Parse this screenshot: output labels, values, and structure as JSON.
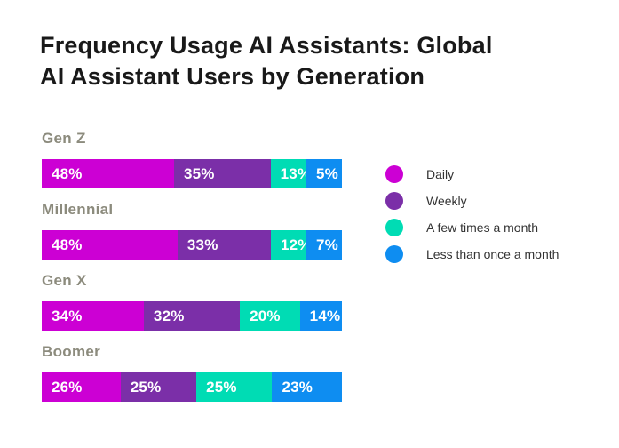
{
  "title": {
    "line1": "Frequency Usage AI Assistants: Global",
    "line2": "AI Assistant Users by Generation"
  },
  "chart_data": {
    "type": "bar",
    "orientation": "horizontal",
    "stacked": true,
    "unit": "%",
    "title": "Frequency Usage AI Assistants: Global AI Assistant Users by Generation",
    "categories": [
      "Gen Z",
      "Millennial",
      "Gen X",
      "Boomer"
    ],
    "series": [
      {
        "name": "Daily",
        "color": "#CC00D4",
        "values": [
          48,
          48,
          34,
          26
        ]
      },
      {
        "name": "Weekly",
        "color": "#7B2FA8",
        "values": [
          35,
          33,
          32,
          25
        ]
      },
      {
        "name": "A few times a month",
        "color": "#00DCB4",
        "values": [
          13,
          12,
          20,
          25
        ]
      },
      {
        "name": "Less than once a month",
        "color": "#0E8DF1",
        "values": [
          5,
          7,
          14,
          23
        ]
      }
    ],
    "value_labels_shown": true,
    "value_label_format": "{value}%",
    "legend_position": "right",
    "grid": false,
    "axes_shown": false
  },
  "colors": {
    "background": "#FFFFFF",
    "title_text": "#191919",
    "category_label": "#8C8B7D",
    "value_label": "#FFFFFF",
    "legend_text": "#333333"
  }
}
